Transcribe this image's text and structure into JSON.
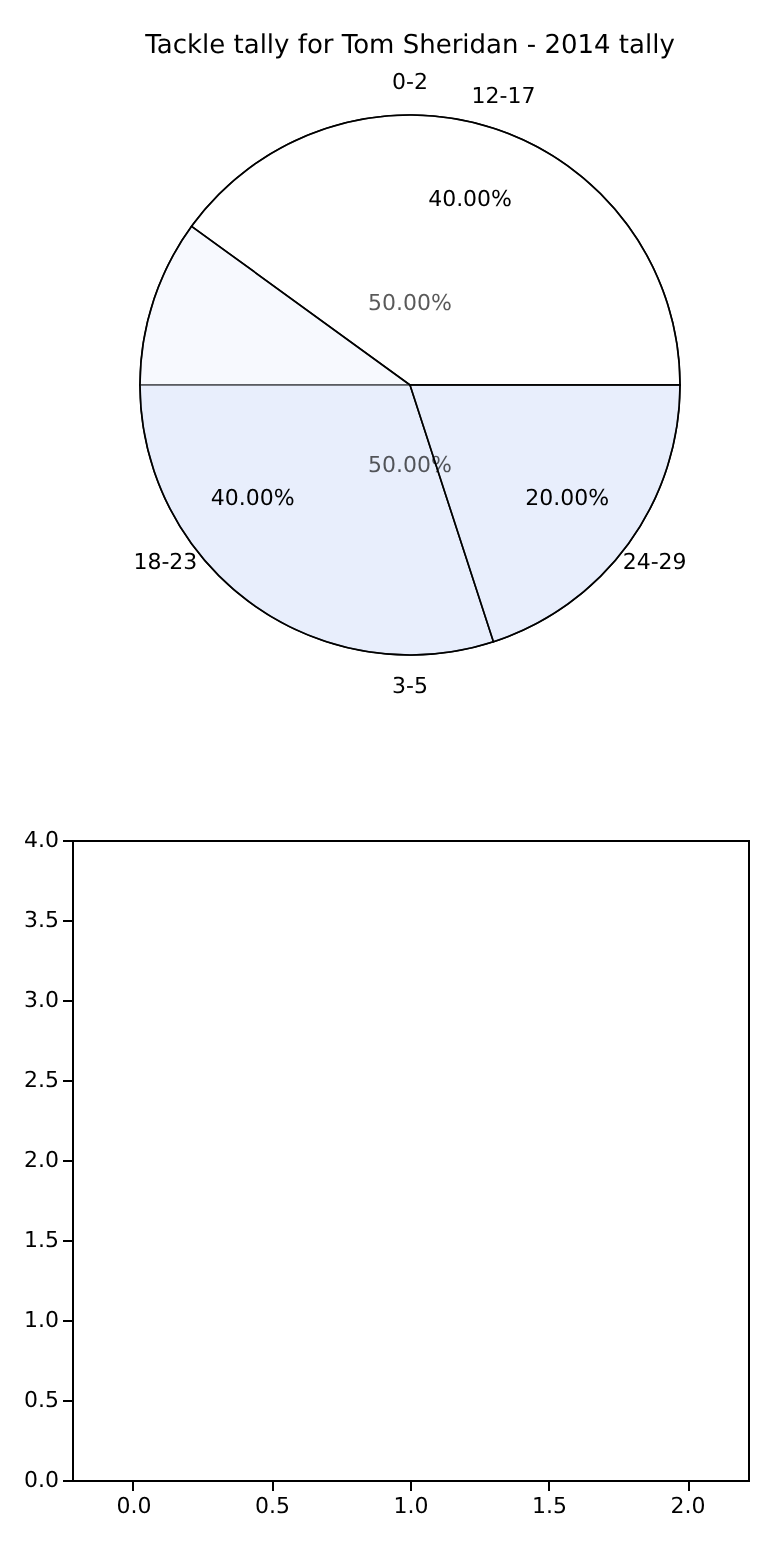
{
  "chart_data": [
    {
      "type": "pie",
      "title": "Tackle tally for Tom Sheridan - 2014 tally",
      "categories": [
        "0-2",
        "3-5"
      ],
      "values": [
        50,
        50
      ],
      "colors": [
        "#ffffff",
        "#e8effc"
      ],
      "value_labels": [
        "50.00%",
        "50.00%"
      ]
    },
    {
      "type": "pie",
      "categories": [
        "12-17",
        "18-23",
        "24-29"
      ],
      "values": [
        40,
        40,
        20
      ],
      "colors": [
        "#ffffff",
        "#e8effc",
        "#e8effc"
      ],
      "value_labels": [
        "40.00%",
        "40.00%",
        "20.00%"
      ]
    },
    {
      "type": "line",
      "xlim": [
        -0.22,
        2.22
      ],
      "ylim": [
        0,
        4
      ],
      "xticks": [
        {
          "value": 0,
          "label": "0.0"
        },
        {
          "value": 0.5,
          "label": "0.5"
        },
        {
          "value": 1,
          "label": "1.0"
        },
        {
          "value": 1.5,
          "label": "1.5"
        },
        {
          "value": 2,
          "label": "2.0"
        }
      ],
      "yticks": [
        {
          "value": 0,
          "label": "0.0"
        },
        {
          "value": 0.5,
          "label": "0.5"
        },
        {
          "value": 1,
          "label": "1.0"
        },
        {
          "value": 1.5,
          "label": "1.5"
        },
        {
          "value": 2,
          "label": "2.0"
        },
        {
          "value": 2.5,
          "label": "2.5"
        },
        {
          "value": 3,
          "label": "3.0"
        },
        {
          "value": 3.5,
          "label": "3.5"
        },
        {
          "value": 4,
          "label": "4.0"
        }
      ]
    }
  ]
}
